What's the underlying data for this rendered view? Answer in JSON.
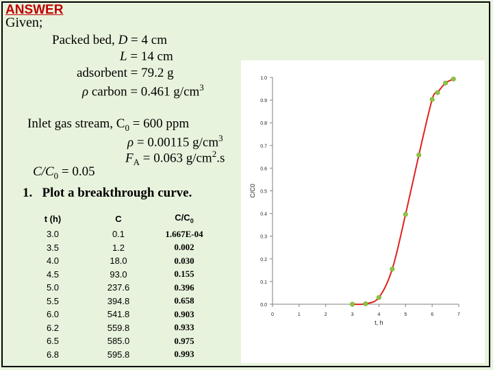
{
  "header": {
    "answer": "ANSWER",
    "given": "Given;"
  },
  "given_lines": {
    "packed_bed": "Packed bed, ",
    "d_sym": "D",
    "d_val": " = 4 cm",
    "l_sym": "L",
    "l_val": " = 14 cm",
    "adsorbent": "adsorbent  = 79.2 g",
    "rho_c_sym": "ρ",
    "rho_c_text": " carbon = 0.461 g/cm",
    "rho_c_exp": "3",
    "inlet_text": "Inlet gas stream, C",
    "inlet_sub": "0",
    "inlet_val": " = 600 ppm",
    "rho_g_sym": "ρ",
    "rho_g_text": " = 0.00115 g/cm",
    "rho_g_exp": "3",
    "fa_sym": "F",
    "fa_sub": "A",
    "fa_text": " = 0.063 g/cm",
    "fa_exp": "2",
    "fa_unit": ".s",
    "cc0_a": "C/C",
    "cc0_sub": "0",
    "cc0_b": " = 0.05",
    "task_num": "1.",
    "task_text": "Plot a breakthrough curve."
  },
  "table": {
    "headers": {
      "t": "t (h)",
      "c": "C",
      "cc": "C/C",
      "cc_sub": "0"
    },
    "rows": [
      {
        "t": "3.0",
        "c": "0.1",
        "cc": "1.667E-04"
      },
      {
        "t": "3.5",
        "c": "1.2",
        "cc": "0.002"
      },
      {
        "t": "4.0",
        "c": "18.0",
        "cc": "0.030"
      },
      {
        "t": "4.5",
        "c": "93.0",
        "cc": "0.155"
      },
      {
        "t": "5.0",
        "c": "237.6",
        "cc": "0.396"
      },
      {
        "t": "5.5",
        "c": "394.8",
        "cc": "0.658"
      },
      {
        "t": "6.0",
        "c": "541.8",
        "cc": "0.903"
      },
      {
        "t": "6.2",
        "c": "559.8",
        "cc": "0.933"
      },
      {
        "t": "6.5",
        "c": "585.0",
        "cc": "0.975"
      },
      {
        "t": "6.8",
        "c": "595.8",
        "cc": "0.993"
      }
    ]
  },
  "chart_data": {
    "type": "scatter",
    "xlabel": "t, h",
    "ylabel": "C/C0",
    "xlim": [
      0,
      7
    ],
    "ylim": [
      0,
      1.0
    ],
    "x_ticks": [
      "0",
      "1",
      "2",
      "3",
      "4",
      "5",
      "6",
      "7"
    ],
    "y_ticks": [
      "0.0",
      "0.1",
      "0.2",
      "0.3",
      "0.4",
      "0.5",
      "0.6",
      "0.7",
      "0.8",
      "0.9",
      "1.0"
    ],
    "grid": false,
    "series": [
      {
        "x": [
          3.0,
          3.5,
          4.0,
          4.5,
          5.0,
          5.5,
          6.0,
          6.2,
          6.5,
          6.8
        ],
        "y": [
          0.000167,
          0.002,
          0.03,
          0.155,
          0.396,
          0.658,
          0.903,
          0.933,
          0.975,
          0.993
        ],
        "marker_color": "#8dc63f",
        "line_color": "#e0201b"
      }
    ]
  }
}
